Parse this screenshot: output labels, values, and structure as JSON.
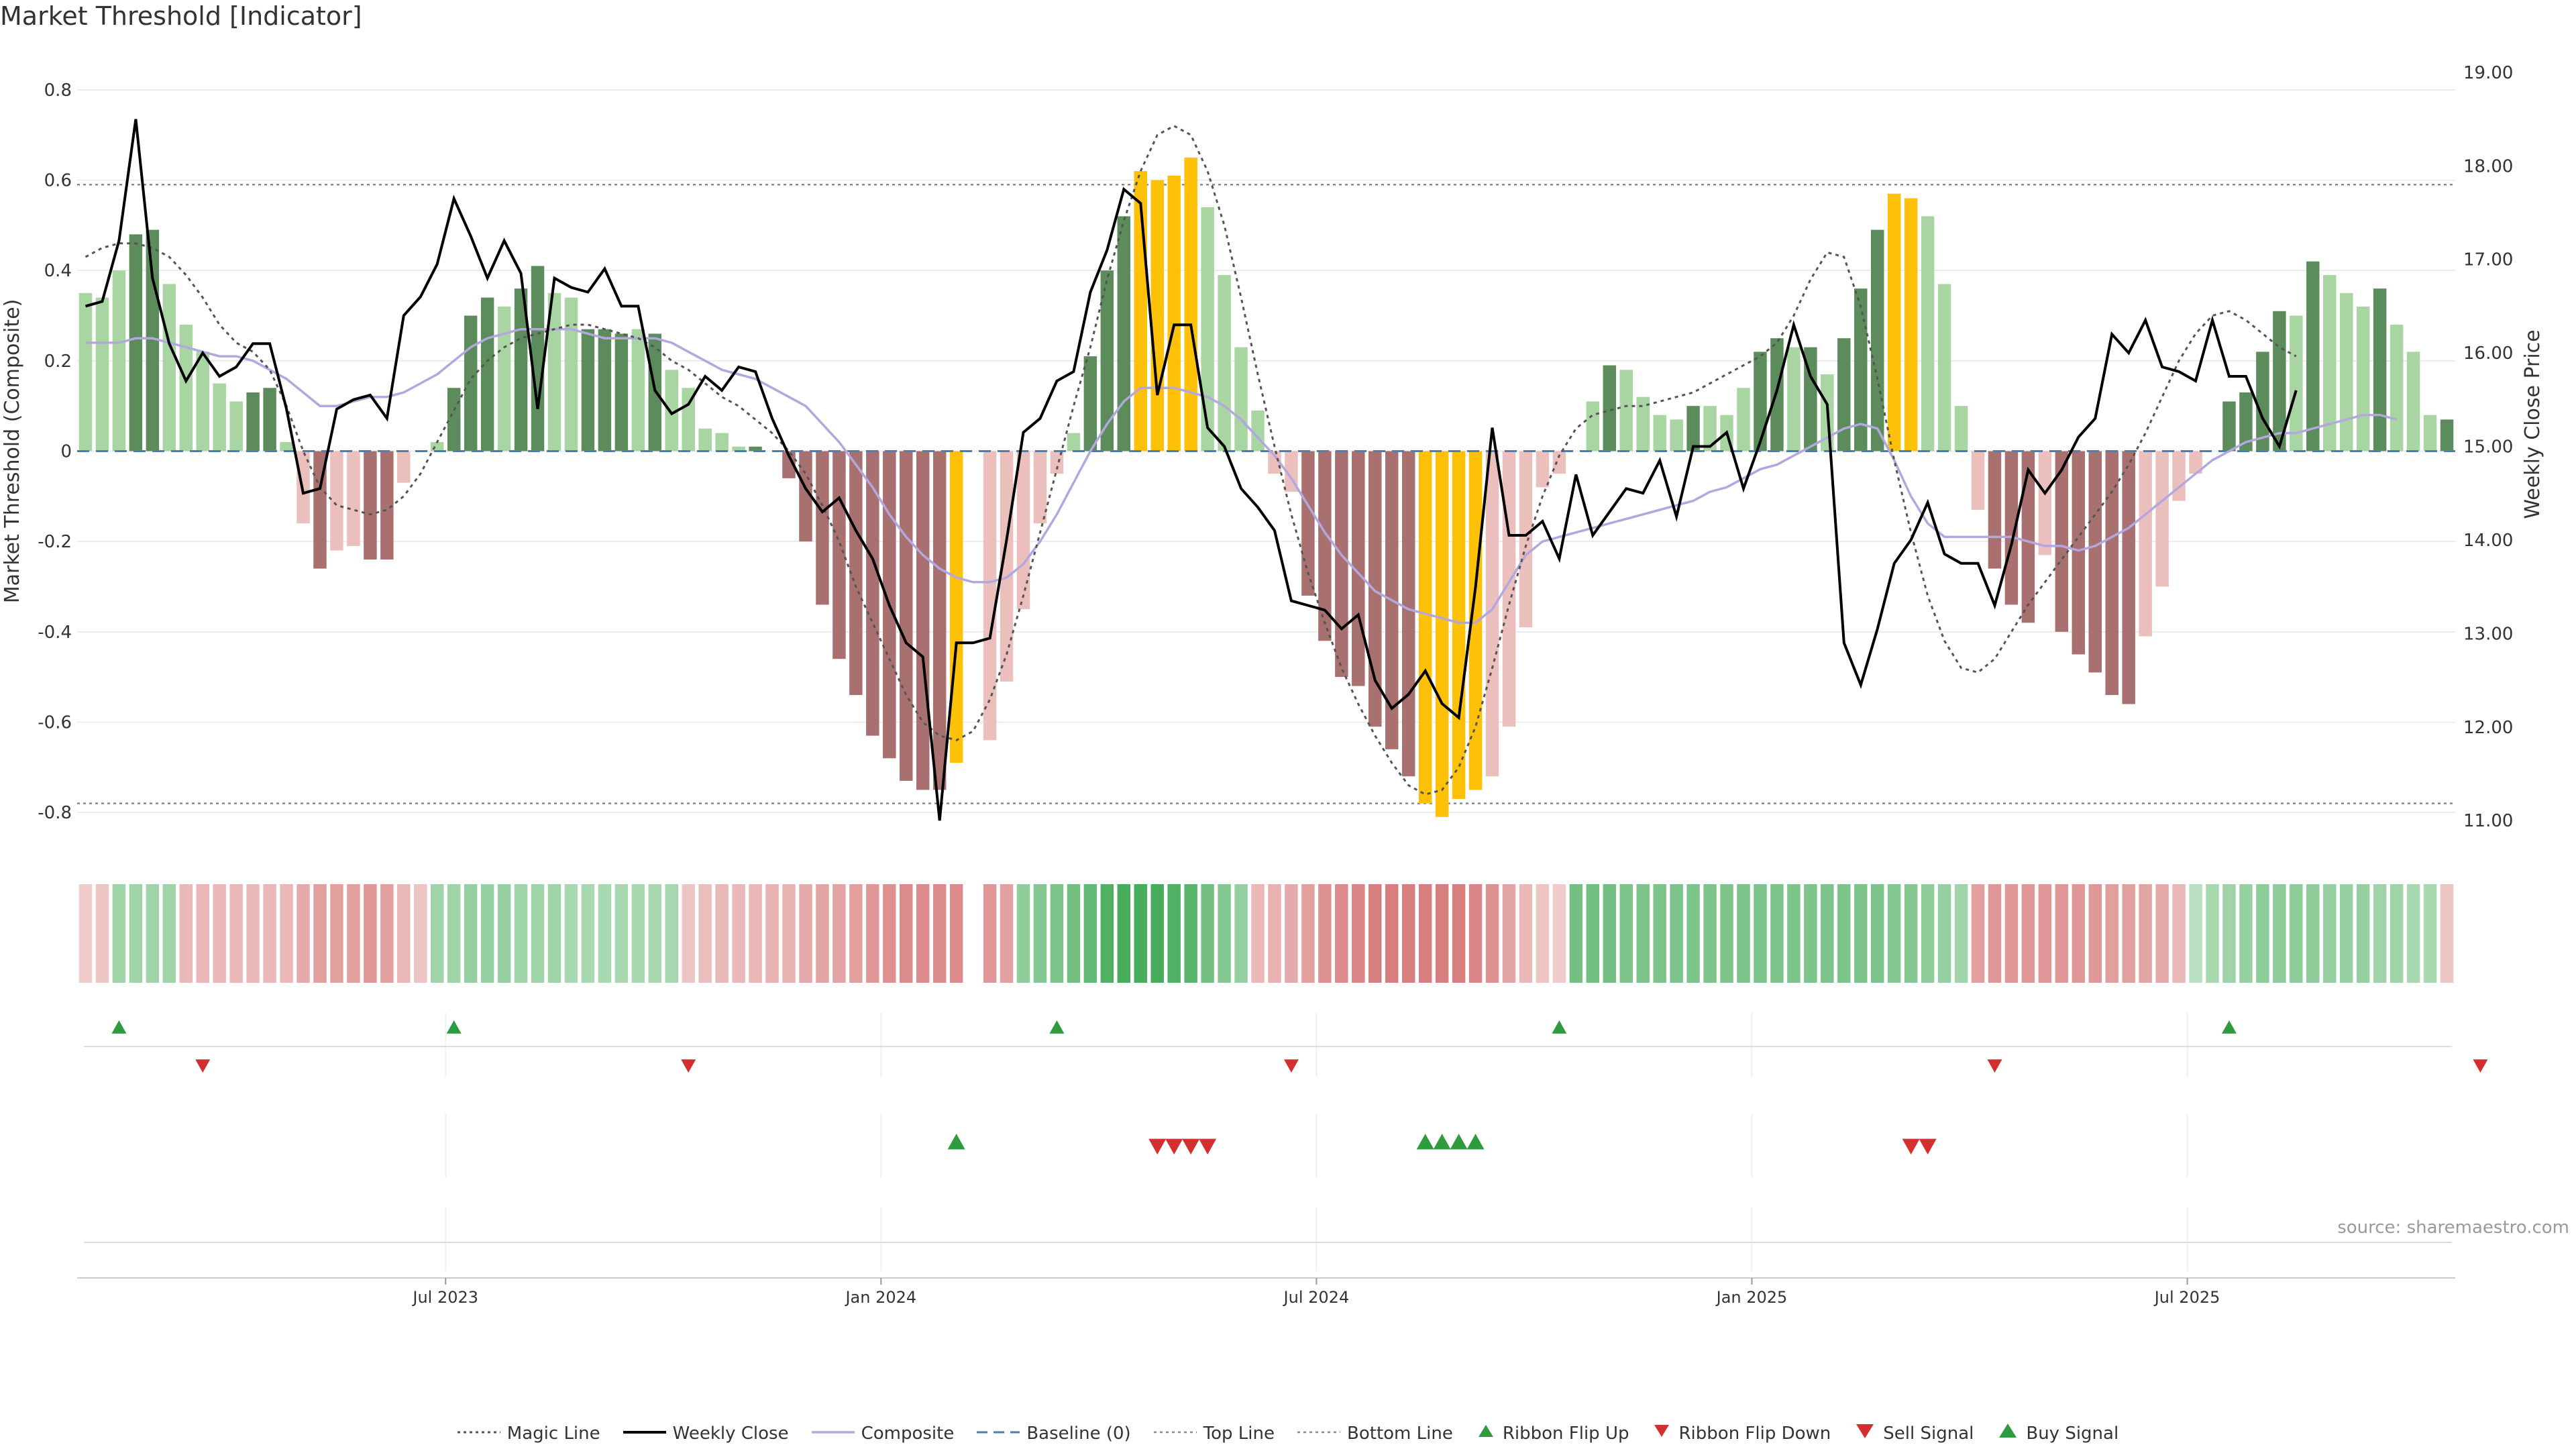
{
  "title": "Market Threshold [Indicator]",
  "source": "source: sharemaestro.com",
  "chart_data": {
    "type": "bar",
    "y_left_label": "Market Threshold (Composite)",
    "y_right_label": "Weekly Close Price",
    "y_left_ticks": [
      "0.8",
      "0.6",
      "0.4",
      "0.2",
      "0",
      "-0.2",
      "-0.4",
      "-0.6",
      "-0.8"
    ],
    "y_left_range": [
      -0.88,
      0.88
    ],
    "y_right_ticks": [
      "19.00",
      "18.00",
      "17.00",
      "16.00",
      "15.00",
      "14.00",
      "13.00",
      "12.00",
      "11.00"
    ],
    "y_right_range": [
      10.7,
      19.2
    ],
    "x_tick_labels": [
      "Jul 2023",
      "Jan 2024",
      "Jul 2024",
      "Jan 2025",
      "Jul 2025"
    ],
    "x_tick_positions_week": [
      22,
      48,
      74,
      100,
      126
    ],
    "top_line": 0.59,
    "bottom_line": -0.78,
    "colors": {
      "strong_pos": "#5d8c5c",
      "weak_pos": "#a8d5a2",
      "strong_neg": "#a8716f",
      "weak_neg": "#ebbfbc",
      "extreme": "#ffc107",
      "close_line": "#000000",
      "composite": "#b3a7df",
      "magic": "#555555",
      "baseline": "#4a7fb0",
      "flip_up": "#2e9c3e",
      "flip_down": "#d32f2f"
    },
    "composite_bars": [
      0.35,
      0.34,
      0.4,
      0.48,
      0.49,
      0.37,
      0.28,
      0.22,
      0.15,
      0.11,
      0.13,
      0.14,
      0.02,
      -0.16,
      -0.26,
      -0.22,
      -0.21,
      -0.24,
      -0.24,
      -0.07,
      0,
      0.02,
      0.14,
      0.3,
      0.34,
      0.32,
      0.36,
      0.41,
      0.35,
      0.34,
      0.27,
      0.27,
      0.26,
      0.27,
      0.26,
      0.18,
      0.14,
      0.05,
      0.04,
      0.01,
      0.01,
      0,
      -0.06,
      -0.2,
      -0.34,
      -0.46,
      -0.54,
      -0.63,
      -0.68,
      -0.73,
      -0.75,
      -0.75,
      -0.69,
      0,
      -0.64,
      -0.51,
      -0.35,
      -0.16,
      -0.05,
      0.04,
      0.21,
      0.4,
      0.52,
      0.62,
      0.6,
      0.61,
      0.65,
      0.54,
      0.39,
      0.23,
      0.09,
      -0.05,
      -0.09,
      -0.32,
      -0.42,
      -0.5,
      -0.52,
      -0.61,
      -0.66,
      -0.72,
      -0.78,
      -0.81,
      -0.77,
      -0.75,
      -0.72,
      -0.61,
      -0.39,
      -0.08,
      -0.05,
      0,
      0.11,
      0.19,
      0.18,
      0.12,
      0.08,
      0.07,
      0.1,
      0.1,
      0.08,
      0.14,
      0.22,
      0.25,
      0.23,
      0.23,
      0.17,
      0.25,
      0.36,
      0.49,
      0.57,
      0.56,
      0.52,
      0.37,
      0.1,
      -0.13,
      -0.26,
      -0.34,
      -0.38,
      -0.23,
      -0.4,
      -0.45,
      -0.49,
      -0.54,
      -0.56,
      -0.41,
      -0.3,
      -0.11,
      -0.05,
      0,
      0.11,
      0.13,
      0.22,
      0.31,
      0.3,
      0.42,
      0.39,
      0.35,
      0.32,
      0.36,
      0.28,
      0.22,
      0.08,
      0.07
    ],
    "bar_color_class": [
      "wp",
      "wp",
      "wp",
      "sp",
      "sp",
      "wp",
      "wp",
      "wp",
      "wp",
      "wp",
      "sp",
      "sp",
      "wp",
      "wn",
      "sn",
      "wn",
      "wn",
      "sn",
      "sn",
      "wn",
      "wp",
      "wp",
      "sp",
      "sp",
      "sp",
      "wp",
      "sp",
      "sp",
      "wp",
      "wp",
      "sp",
      "sp",
      "sp",
      "wp",
      "sp",
      "wp",
      "wp",
      "wp",
      "wp",
      "wp",
      "sp",
      "wp",
      "sn",
      "sn",
      "sn",
      "sn",
      "sn",
      "sn",
      "sn",
      "sn",
      "sn",
      "sn",
      "ex",
      "wn",
      "wn",
      "wn",
      "wn",
      "wn",
      "wn",
      "wp",
      "sp",
      "sp",
      "sp",
      "ex",
      "ex",
      "ex",
      "ex",
      "wp",
      "wp",
      "wp",
      "wp",
      "wn",
      "wn",
      "sn",
      "sn",
      "sn",
      "sn",
      "sn",
      "sn",
      "sn",
      "ex",
      "ex",
      "ex",
      "ex",
      "wn",
      "wn",
      "wn",
      "wn",
      "wn",
      "wp",
      "wp",
      "sp",
      "wp",
      "wp",
      "wp",
      "wp",
      "sp",
      "wp",
      "wp",
      "wp",
      "sp",
      "sp",
      "wp",
      "sp",
      "wp",
      "sp",
      "sp",
      "sp",
      "ex",
      "ex",
      "wp",
      "wp",
      "wp",
      "wn",
      "sn",
      "sn",
      "sn",
      "wn",
      "sn",
      "sn",
      "sn",
      "sn",
      "sn",
      "wn",
      "wn",
      "wn",
      "wn",
      "wp",
      "sp",
      "sp",
      "sp",
      "sp",
      "wp",
      "sp",
      "wp",
      "wp",
      "wp",
      "sp",
      "wp",
      "wp",
      "wp",
      "sp"
    ],
    "weekly_close": [
      16.5,
      16.55,
      17.2,
      18.5,
      16.8,
      16.1,
      15.7,
      16.0,
      15.75,
      15.85,
      16.1,
      16.1,
      15.4,
      14.5,
      14.55,
      15.4,
      15.5,
      15.55,
      15.3,
      16.4,
      16.6,
      16.95,
      17.65,
      17.25,
      16.8,
      17.2,
      16.85,
      15.4,
      16.8,
      16.7,
      16.65,
      16.9,
      16.5,
      16.5,
      15.6,
      15.35,
      15.45,
      15.75,
      15.6,
      15.85,
      15.8,
      15.3,
      14.9,
      14.55,
      14.3,
      14.45,
      14.1,
      13.8,
      13.3,
      12.9,
      12.75,
      11.0,
      12.9,
      12.9,
      12.95,
      14.0,
      15.15,
      15.3,
      15.7,
      15.8,
      16.65,
      17.1,
      17.75,
      17.6,
      15.55,
      16.3,
      16.3,
      15.2,
      15.0,
      14.55,
      14.35,
      14.1,
      13.35,
      13.3,
      13.25,
      13.05,
      13.2,
      12.5,
      12.2,
      12.35,
      12.6,
      12.25,
      12.1,
      13.5,
      15.2,
      14.05,
      14.05,
      14.2,
      13.8,
      14.7,
      14.05,
      14.3,
      14.55,
      14.5,
      14.85,
      14.25,
      15.0,
      15.0,
      15.15,
      14.55,
      15.05,
      15.6,
      16.3,
      15.75,
      15.45,
      12.9,
      12.45,
      13.05,
      13.75,
      14.0,
      14.4,
      13.85,
      13.75,
      13.75,
      13.3,
      13.95,
      14.75,
      14.5,
      14.75,
      15.1,
      15.3,
      16.2,
      16.0,
      16.35,
      15.85,
      15.8,
      15.7,
      16.35,
      15.75,
      15.75,
      15.3,
      15.0,
      15.6
    ],
    "composite_line": [
      0.24,
      0.24,
      0.24,
      0.25,
      0.25,
      0.24,
      0.23,
      0.22,
      0.21,
      0.21,
      0.2,
      0.18,
      0.16,
      0.13,
      0.1,
      0.1,
      0.11,
      0.12,
      0.12,
      0.13,
      0.15,
      0.17,
      0.2,
      0.23,
      0.25,
      0.26,
      0.27,
      0.27,
      0.27,
      0.27,
      0.26,
      0.25,
      0.25,
      0.25,
      0.25,
      0.24,
      0.22,
      0.2,
      0.18,
      0.17,
      0.16,
      0.14,
      0.12,
      0.1,
      0.06,
      0.02,
      -0.03,
      -0.08,
      -0.14,
      -0.19,
      -0.23,
      -0.26,
      -0.28,
      -0.29,
      -0.29,
      -0.28,
      -0.25,
      -0.2,
      -0.14,
      -0.07,
      0.0,
      0.06,
      0.11,
      0.14,
      0.14,
      0.14,
      0.13,
      0.12,
      0.1,
      0.07,
      0.03,
      -0.01,
      -0.06,
      -0.12,
      -0.18,
      -0.23,
      -0.27,
      -0.31,
      -0.33,
      -0.35,
      -0.36,
      -0.37,
      -0.38,
      -0.38,
      -0.35,
      -0.29,
      -0.23,
      -0.2,
      -0.19,
      -0.18,
      -0.17,
      -0.16,
      -0.15,
      -0.14,
      -0.13,
      -0.12,
      -0.11,
      -0.09,
      -0.08,
      -0.06,
      -0.04,
      -0.03,
      -0.01,
      0.01,
      0.03,
      0.05,
      0.06,
      0.05,
      -0.02,
      -0.1,
      -0.16,
      -0.19,
      -0.19,
      -0.19,
      -0.19,
      -0.19,
      -0.2,
      -0.21,
      -0.21,
      -0.22,
      -0.21,
      -0.19,
      -0.17,
      -0.14,
      -0.11,
      -0.08,
      -0.05,
      -0.02,
      0.0,
      0.02,
      0.03,
      0.04,
      0.04,
      0.05,
      0.06,
      0.07,
      0.08,
      0.08,
      0.07
    ],
    "magic_line": [
      0.43,
      0.45,
      0.46,
      0.46,
      0.45,
      0.43,
      0.39,
      0.34,
      0.28,
      0.24,
      0.22,
      0.18,
      0.1,
      0.0,
      -0.08,
      -0.12,
      -0.13,
      -0.14,
      -0.13,
      -0.1,
      -0.05,
      0.02,
      0.09,
      0.16,
      0.2,
      0.23,
      0.25,
      0.26,
      0.27,
      0.28,
      0.28,
      0.27,
      0.26,
      0.25,
      0.23,
      0.2,
      0.18,
      0.15,
      0.12,
      0.1,
      0.07,
      0.04,
      0.0,
      -0.05,
      -0.12,
      -0.2,
      -0.3,
      -0.38,
      -0.46,
      -0.54,
      -0.6,
      -0.63,
      -0.64,
      -0.62,
      -0.55,
      -0.45,
      -0.32,
      -0.18,
      -0.04,
      0.1,
      0.23,
      0.38,
      0.51,
      0.62,
      0.7,
      0.72,
      0.7,
      0.62,
      0.5,
      0.34,
      0.17,
      0.01,
      -0.14,
      -0.27,
      -0.38,
      -0.48,
      -0.56,
      -0.63,
      -0.69,
      -0.74,
      -0.76,
      -0.75,
      -0.7,
      -0.61,
      -0.48,
      -0.34,
      -0.21,
      -0.1,
      -0.01,
      0.05,
      0.08,
      0.09,
      0.1,
      0.1,
      0.11,
      0.12,
      0.13,
      0.15,
      0.17,
      0.19,
      0.21,
      0.24,
      0.3,
      0.38,
      0.44,
      0.43,
      0.32,
      0.16,
      -0.02,
      -0.18,
      -0.32,
      -0.42,
      -0.48,
      -0.49,
      -0.46,
      -0.4,
      -0.34,
      -0.29,
      -0.24,
      -0.19,
      -0.14,
      -0.09,
      -0.03,
      0.04,
      0.12,
      0.2,
      0.26,
      0.3,
      0.31,
      0.29,
      0.26,
      0.23,
      0.21
    ],
    "ribbon_intensity": [
      -0.15,
      -0.2,
      0.35,
      0.35,
      0.35,
      0.35,
      -0.3,
      -0.3,
      -0.3,
      -0.3,
      -0.3,
      -0.3,
      -0.3,
      -0.4,
      -0.5,
      -0.5,
      -0.5,
      -0.55,
      -0.5,
      -0.3,
      -0.2,
      0.35,
      0.35,
      0.4,
      0.4,
      0.4,
      0.35,
      0.35,
      0.35,
      0.3,
      0.3,
      0.3,
      0.3,
      0.3,
      0.3,
      0.3,
      -0.2,
      -0.25,
      -0.3,
      -0.3,
      -0.3,
      -0.35,
      -0.35,
      -0.4,
      -0.45,
      -0.45,
      -0.5,
      -0.55,
      -0.6,
      -0.65,
      -0.65,
      -0.65,
      -0.65,
      0,
      -0.55,
      -0.5,
      0.45,
      0.5,
      0.55,
      0.6,
      0.7,
      0.8,
      0.85,
      0.85,
      0.85,
      0.8,
      0.75,
      0.6,
      0.5,
      0.4,
      -0.3,
      -0.35,
      -0.4,
      -0.5,
      -0.6,
      -0.65,
      -0.7,
      -0.75,
      -0.75,
      -0.75,
      -0.75,
      -0.75,
      -0.75,
      -0.7,
      -0.6,
      -0.45,
      -0.3,
      -0.2,
      -0.15,
      0.6,
      0.6,
      0.6,
      0.55,
      0.55,
      0.55,
      0.55,
      0.55,
      0.55,
      0.55,
      0.55,
      0.55,
      0.55,
      0.55,
      0.55,
      0.55,
      0.55,
      0.55,
      0.55,
      0.5,
      0.5,
      0.45,
      0.4,
      0.35,
      -0.5,
      -0.55,
      -0.55,
      -0.55,
      -0.55,
      -0.55,
      -0.55,
      -0.55,
      -0.5,
      -0.5,
      -0.45,
      -0.4,
      -0.3,
      0.2,
      0.3,
      0.35,
      0.4,
      0.45,
      0.45,
      0.45,
      0.45,
      0.4,
      0.4,
      0.4,
      0.35,
      0.35,
      0.3,
      0.3,
      -0.2
    ],
    "ribbon_flip_up_weeks": [
      2,
      22,
      58,
      88,
      128
    ],
    "ribbon_flip_down_weeks": [
      7,
      36,
      72,
      114,
      143
    ],
    "buy_signal_weeks": [
      52,
      80,
      81,
      82,
      83
    ],
    "sell_signal_weeks": [
      64,
      65,
      66,
      67,
      109,
      110
    ],
    "legend": [
      "Magic Line",
      "Weekly Close",
      "Composite",
      "Baseline (0)",
      "Top Line",
      "Bottom Line",
      "Ribbon Flip Up",
      "Ribbon Flip Down",
      "Sell Signal",
      "Buy Signal"
    ]
  }
}
